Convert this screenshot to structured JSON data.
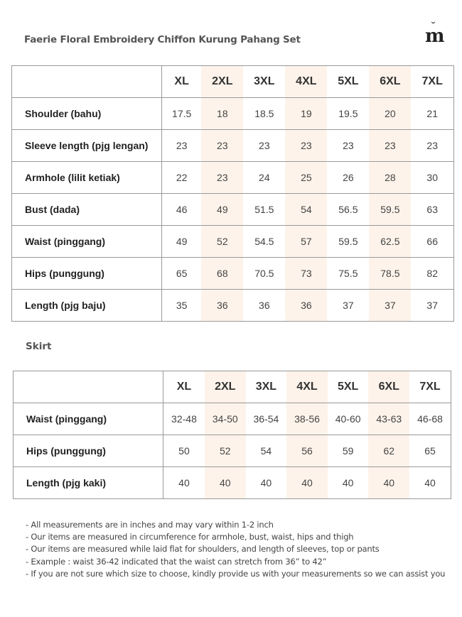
{
  "title": "Faerie Floral Embroidery Chiffon Kurung Pahang Set",
  "logo": "m",
  "colors": {
    "highlight_column": "#fdf3ea",
    "border": "#999999"
  },
  "sizes": [
    "XL",
    "2XL",
    "3XL",
    "4XL",
    "5XL",
    "6XL",
    "7XL"
  ],
  "top_table": {
    "rows": [
      {
        "label": "Shoulder (bahu)",
        "values": [
          "17.5",
          "18",
          "18.5",
          "19",
          "19.5",
          "20",
          "21"
        ]
      },
      {
        "label": "Sleeve length (pjg lengan)",
        "values": [
          "23",
          "23",
          "23",
          "23",
          "23",
          "23",
          "23"
        ]
      },
      {
        "label": "Armhole (lilit ketiak)",
        "values": [
          "22",
          "23",
          "24",
          "25",
          "26",
          "28",
          "30"
        ]
      },
      {
        "label": "Bust (dada)",
        "values": [
          "46",
          "49",
          "51.5",
          "54",
          "56.5",
          "59.5",
          "63"
        ]
      },
      {
        "label": "Waist (pinggang)",
        "values": [
          "49",
          "52",
          "54.5",
          "57",
          "59.5",
          "62.5",
          "66"
        ]
      },
      {
        "label": "Hips (punggung)",
        "values": [
          "65",
          "68",
          "70.5",
          "73",
          "75.5",
          "78.5",
          "82"
        ]
      },
      {
        "label": "Length (pjg baju)",
        "values": [
          "35",
          "36",
          "36",
          "36",
          "37",
          "37",
          "37"
        ]
      }
    ]
  },
  "skirt_heading": "Skirt",
  "skirt_table": {
    "rows": [
      {
        "label": "Waist (pinggang)",
        "values": [
          "32-48",
          "34-50",
          "36-54",
          "38-56",
          "40-60",
          "43-63",
          "46-68"
        ]
      },
      {
        "label": "Hips (punggung)",
        "values": [
          "50",
          "52",
          "54",
          "56",
          "59",
          "62",
          "65"
        ]
      },
      {
        "label": "Length (pjg kaki)",
        "values": [
          "40",
          "40",
          "40",
          "40",
          "40",
          "40",
          "40"
        ]
      }
    ]
  },
  "notes": [
    "- All measurements are in inches and may vary within 1-2 inch",
    "- Our items are measured in circumference for armhole, bust, waist, hips and thigh",
    "- Our items are measured while laid flat for shoulders, and length of sleeves, top or pants",
    "- Example : waist 36-42 indicated that the waist can stretch from 36” to 42”",
    "- If you are not sure which size to choose, kindly provide us with your measurements so we can assist you"
  ]
}
